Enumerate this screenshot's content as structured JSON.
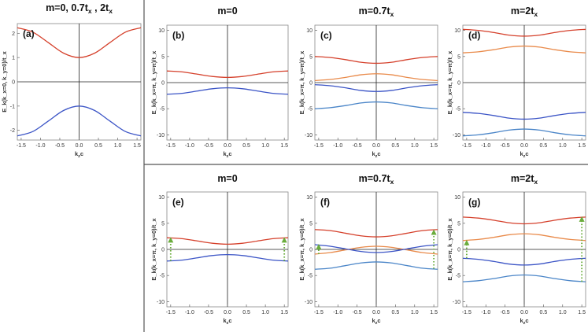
{
  "colors": {
    "red": "#d5402b",
    "orange": "#e98a4a",
    "blue": "#3b54c6",
    "lightblue": "#4a85c8",
    "arrow": "#6aac3c"
  },
  "chart_data": [
    {
      "id": "a",
      "type": "line",
      "panel_label": "(a)",
      "title": "m=0, 0.7t",
      "title_sub": "x",
      "title_tail": " , 2t",
      "title_tail_sub": "x",
      "xlabel": "k",
      "xlabel_sub": "z",
      "xlabel_tail": "c",
      "ylabel": "E_k(k_x=0, k_y=0)/t_x",
      "xlim": [
        -1.6,
        1.6
      ],
      "ylim": [
        -2.4,
        2.4
      ],
      "xticks": [
        -1.5,
        -1.0,
        -0.5,
        0.0,
        0.5,
        1.0,
        1.5
      ],
      "xtick_labels": [
        "-1.5",
        "-1.0",
        "-0.5",
        "0.0",
        "0.5",
        "1.0",
        "1.5"
      ],
      "yticks": [
        -2,
        -1,
        0,
        1,
        2
      ],
      "ytick_labels": [
        "-2",
        "-1",
        "0",
        "1",
        "2"
      ],
      "series": [
        {
          "color": "red",
          "x": [
            -1.6,
            -1.2,
            -0.8,
            -0.4,
            0.0,
            0.4,
            0.8,
            1.2,
            1.6
          ],
          "y": [
            2.23,
            2.05,
            1.62,
            1.18,
            1.0,
            1.18,
            1.62,
            2.05,
            2.23
          ]
        },
        {
          "color": "blue",
          "x": [
            -1.6,
            -1.2,
            -0.8,
            -0.4,
            0.0,
            0.4,
            0.8,
            1.2,
            1.6
          ],
          "y": [
            -2.23,
            -2.05,
            -1.62,
            -1.18,
            -1.0,
            -1.18,
            -1.62,
            -2.05,
            -2.23
          ]
        }
      ]
    },
    {
      "id": "b",
      "type": "line",
      "panel_label": "(b)",
      "title": "m=0",
      "title_sub": "",
      "title_tail": "",
      "title_tail_sub": "",
      "xlabel": "k",
      "xlabel_sub": "z",
      "xlabel_tail": "c",
      "ylabel": "E_k(k_x=π, k_y=π)/t_x",
      "xlim": [
        -1.6,
        1.6
      ],
      "ylim": [
        -11,
        11
      ],
      "xticks": [
        -1.5,
        -1.0,
        -0.5,
        0.0,
        0.5,
        1.0,
        1.5
      ],
      "xtick_labels": [
        "-1.5",
        "-1.0",
        "-0.5",
        "0.0",
        "0.5",
        "1.0",
        "1.5"
      ],
      "yticks": [
        -10,
        -5,
        0,
        5,
        10
      ],
      "ytick_labels": [
        "-10",
        "-5",
        "0",
        "5",
        "10"
      ],
      "series": [
        {
          "color": "red",
          "x": [
            -1.6,
            -1.2,
            -0.8,
            -0.4,
            0.0,
            0.4,
            0.8,
            1.2,
            1.6
          ],
          "y": [
            2.23,
            2.05,
            1.62,
            1.18,
            1.0,
            1.18,
            1.62,
            2.05,
            2.23
          ]
        },
        {
          "color": "blue",
          "x": [
            -1.6,
            -1.2,
            -0.8,
            -0.4,
            0.0,
            0.4,
            0.8,
            1.2,
            1.6
          ],
          "y": [
            -2.23,
            -2.05,
            -1.62,
            -1.18,
            -1.0,
            -1.18,
            -1.62,
            -2.05,
            -2.23
          ]
        }
      ]
    },
    {
      "id": "c",
      "type": "line",
      "panel_label": "(c)",
      "title": "m=0.7t",
      "title_sub": "x",
      "title_tail": "",
      "title_tail_sub": "",
      "xlabel": "k",
      "xlabel_sub": "z",
      "xlabel_tail": "c",
      "ylabel": "E_k(k_x=π, k_y=π)/t_x",
      "xlim": [
        -1.6,
        1.6
      ],
      "ylim": [
        -11,
        11
      ],
      "xticks": [
        -1.5,
        -1.0,
        -0.5,
        0.0,
        0.5,
        1.0,
        1.5
      ],
      "xtick_labels": [
        "-1.5",
        "-1.0",
        "-0.5",
        "0.0",
        "0.5",
        "1.0",
        "1.5"
      ],
      "yticks": [
        -10,
        -5,
        0,
        5,
        10
      ],
      "ytick_labels": [
        "-10",
        "-5",
        "0",
        "5",
        "10"
      ],
      "series": [
        {
          "color": "red",
          "x": [
            -1.6,
            -1.2,
            -0.8,
            -0.4,
            0.0,
            0.4,
            0.8,
            1.2,
            1.6
          ],
          "y": [
            5.0,
            4.8,
            4.4,
            3.9,
            3.7,
            3.9,
            4.4,
            4.8,
            5.0
          ]
        },
        {
          "color": "orange",
          "x": [
            -1.6,
            -1.2,
            -0.8,
            -0.4,
            0.0,
            0.4,
            0.8,
            1.2,
            1.6
          ],
          "y": [
            0.4,
            0.6,
            1.0,
            1.5,
            1.7,
            1.5,
            1.0,
            0.6,
            0.4
          ]
        },
        {
          "color": "blue",
          "x": [
            -1.6,
            -1.2,
            -0.8,
            -0.4,
            0.0,
            0.4,
            0.8,
            1.2,
            1.6
          ],
          "y": [
            -0.4,
            -0.6,
            -1.0,
            -1.5,
            -1.7,
            -1.5,
            -1.0,
            -0.6,
            -0.4
          ]
        },
        {
          "color": "lightblue",
          "x": [
            -1.6,
            -1.2,
            -0.8,
            -0.4,
            0.0,
            0.4,
            0.8,
            1.2,
            1.6
          ],
          "y": [
            -5.0,
            -4.8,
            -4.4,
            -3.9,
            -3.7,
            -3.9,
            -4.4,
            -4.8,
            -5.0
          ]
        }
      ]
    },
    {
      "id": "d",
      "type": "line",
      "panel_label": "(d)",
      "title": "m=2t",
      "title_sub": "x",
      "title_tail": "",
      "title_tail_sub": "",
      "xlabel": "k",
      "xlabel_sub": "z",
      "xlabel_tail": "c",
      "ylabel": "E_k(k_x=π, k_y=π)/t_x",
      "xlim": [
        -1.6,
        1.6
      ],
      "ylim": [
        -11,
        11
      ],
      "xticks": [
        -1.5,
        -1.0,
        -0.5,
        0.0,
        0.5,
        1.0,
        1.5
      ],
      "xtick_labels": [
        "-1.5",
        "-1.0",
        "-0.5",
        "0.0",
        "0.5",
        "1.0",
        "1.5"
      ],
      "yticks": [
        -10,
        -5,
        0,
        5,
        10
      ],
      "ytick_labels": [
        "-10",
        "-5",
        "0",
        "5",
        "10"
      ],
      "series": [
        {
          "color": "red",
          "x": [
            -1.6,
            -1.2,
            -0.8,
            -0.4,
            0.0,
            0.4,
            0.8,
            1.2,
            1.6
          ],
          "y": [
            10.2,
            10.0,
            9.6,
            9.1,
            8.9,
            9.1,
            9.6,
            10.0,
            10.2
          ]
        },
        {
          "color": "orange",
          "x": [
            -1.6,
            -1.2,
            -0.8,
            -0.4,
            0.0,
            0.4,
            0.8,
            1.2,
            1.6
          ],
          "y": [
            5.7,
            5.9,
            6.3,
            6.8,
            7.0,
            6.8,
            6.3,
            5.9,
            5.7
          ]
        },
        {
          "color": "blue",
          "x": [
            -1.6,
            -1.2,
            -0.8,
            -0.4,
            0.0,
            0.4,
            0.8,
            1.2,
            1.6
          ],
          "y": [
            -5.7,
            -5.9,
            -6.3,
            -6.8,
            -7.0,
            -6.8,
            -6.3,
            -5.9,
            -5.7
          ]
        },
        {
          "color": "lightblue",
          "x": [
            -1.6,
            -1.2,
            -0.8,
            -0.4,
            0.0,
            0.4,
            0.8,
            1.2,
            1.6
          ],
          "y": [
            -10.2,
            -10.0,
            -9.6,
            -9.1,
            -8.9,
            -9.1,
            -9.6,
            -10.0,
            -10.2
          ]
        }
      ]
    },
    {
      "id": "e",
      "type": "line",
      "panel_label": "(e)",
      "title": "m=0",
      "title_sub": "",
      "title_tail": "",
      "title_tail_sub": "",
      "xlabel": "k",
      "xlabel_sub": "z",
      "xlabel_tail": "c",
      "ylabel": "E_k(k_x=π, k_y=0)/t_x",
      "xlim": [
        -1.6,
        1.6
      ],
      "ylim": [
        -11,
        11
      ],
      "xticks": [
        -1.5,
        -1.0,
        -0.5,
        0.0,
        0.5,
        1.0,
        1.5
      ],
      "xtick_labels": [
        "-1.5",
        "-1.0",
        "-0.5",
        "0.0",
        "0.5",
        "1.0",
        "1.5"
      ],
      "yticks": [
        -10,
        -5,
        0,
        5,
        10
      ],
      "ytick_labels": [
        "-10",
        "-5",
        "0",
        "5",
        "10"
      ],
      "series": [
        {
          "color": "red",
          "x": [
            -1.6,
            -1.2,
            -0.8,
            -0.4,
            0.0,
            0.4,
            0.8,
            1.2,
            1.6
          ],
          "y": [
            2.23,
            2.05,
            1.62,
            1.18,
            1.0,
            1.18,
            1.62,
            2.05,
            2.23
          ]
        },
        {
          "color": "blue",
          "x": [
            -1.6,
            -1.2,
            -0.8,
            -0.4,
            0.0,
            0.4,
            0.8,
            1.2,
            1.6
          ],
          "y": [
            -2.23,
            -2.05,
            -1.62,
            -1.18,
            -1.0,
            -1.18,
            -1.62,
            -2.05,
            -2.23
          ]
        }
      ],
      "arrows": [
        {
          "x": -1.5,
          "y0": -2.2,
          "y1": 2.2
        },
        {
          "x": 1.5,
          "y0": -2.2,
          "y1": 2.2
        }
      ]
    },
    {
      "id": "f",
      "type": "line",
      "panel_label": "(f)",
      "title": "m=0.7t",
      "title_sub": "x",
      "title_tail": "",
      "title_tail_sub": "",
      "xlabel": "k",
      "xlabel_sub": "z",
      "xlabel_tail": "c",
      "ylabel": "E_k(k_x=π, k_y=0)/t_x",
      "xlim": [
        -1.6,
        1.6
      ],
      "ylim": [
        -11,
        11
      ],
      "xticks": [
        -1.5,
        -1.0,
        -0.5,
        0.0,
        0.5,
        1.0,
        1.5
      ],
      "xtick_labels": [
        "-1.5",
        "-1.0",
        "-0.5",
        "0.0",
        "0.5",
        "1.0",
        "1.5"
      ],
      "yticks": [
        -10,
        -5,
        0,
        5,
        10
      ],
      "ytick_labels": [
        "-10",
        "-5",
        "0",
        "5",
        "10"
      ],
      "series": [
        {
          "color": "red",
          "x": [
            -1.6,
            -1.2,
            -0.8,
            -0.4,
            0.0,
            0.4,
            0.8,
            1.2,
            1.6
          ],
          "y": [
            3.8,
            3.6,
            3.1,
            2.6,
            2.4,
            2.6,
            3.1,
            3.6,
            3.8
          ]
        },
        {
          "color": "orange",
          "x": [
            -1.6,
            -1.2,
            -0.8,
            -0.4,
            0.0,
            0.4,
            0.8,
            1.2,
            1.6
          ],
          "y": [
            -0.9,
            -0.6,
            -0.1,
            0.4,
            0.6,
            0.4,
            -0.1,
            -0.6,
            -0.9
          ]
        },
        {
          "color": "blue",
          "x": [
            -1.6,
            -1.2,
            -0.8,
            -0.4,
            0.0,
            0.4,
            0.8,
            1.2,
            1.6
          ],
          "y": [
            0.9,
            0.6,
            0.1,
            -0.4,
            -0.6,
            -0.4,
            0.1,
            0.6,
            0.9
          ]
        },
        {
          "color": "lightblue",
          "x": [
            -1.6,
            -1.2,
            -0.8,
            -0.4,
            0.0,
            0.4,
            0.8,
            1.2,
            1.6
          ],
          "y": [
            -3.8,
            -3.6,
            -3.1,
            -2.6,
            -2.4,
            -2.6,
            -3.1,
            -3.6,
            -3.8
          ]
        }
      ],
      "arrows": [
        {
          "x": -1.5,
          "y0": -0.9,
          "y1": 0.9
        },
        {
          "x": 1.5,
          "y0": -3.7,
          "y1": 3.7
        }
      ]
    },
    {
      "id": "g",
      "type": "line",
      "panel_label": "(g)",
      "title": "m=2t",
      "title_sub": "x",
      "title_tail": "",
      "title_tail_sub": "",
      "xlabel": "k",
      "xlabel_sub": "z",
      "xlabel_tail": "c",
      "ylabel": "E_k(k_x=π, k_y=0)/t_x",
      "xlim": [
        -1.6,
        1.6
      ],
      "ylim": [
        -11,
        11
      ],
      "xticks": [
        -1.5,
        -1.0,
        -0.5,
        0.0,
        0.5,
        1.0,
        1.5
      ],
      "xtick_labels": [
        "-1.5",
        "-1.0",
        "-0.5",
        "0.0",
        "0.5",
        "1.0",
        "1.5"
      ],
      "yticks": [
        -10,
        -5,
        0,
        5,
        10
      ],
      "ytick_labels": [
        "-10",
        "-5",
        "0",
        "5",
        "10"
      ],
      "series": [
        {
          "color": "red",
          "x": [
            -1.6,
            -1.2,
            -0.8,
            -0.4,
            0.0,
            0.4,
            0.8,
            1.2,
            1.6
          ],
          "y": [
            6.2,
            6.0,
            5.6,
            5.1,
            4.9,
            5.1,
            5.6,
            6.0,
            6.2
          ]
        },
        {
          "color": "orange",
          "x": [
            -1.6,
            -1.2,
            -0.8,
            -0.4,
            0.0,
            0.4,
            0.8,
            1.2,
            1.6
          ],
          "y": [
            1.7,
            1.9,
            2.3,
            2.8,
            3.0,
            2.8,
            2.3,
            1.9,
            1.7
          ]
        },
        {
          "color": "blue",
          "x": [
            -1.6,
            -1.2,
            -0.8,
            -0.4,
            0.0,
            0.4,
            0.8,
            1.2,
            1.6
          ],
          "y": [
            -1.7,
            -1.9,
            -2.3,
            -2.8,
            -3.0,
            -2.8,
            -2.3,
            -1.9,
            -1.7
          ]
        },
        {
          "color": "lightblue",
          "x": [
            -1.6,
            -1.2,
            -0.8,
            -0.4,
            0.0,
            0.4,
            0.8,
            1.2,
            1.6
          ],
          "y": [
            -6.2,
            -6.0,
            -5.6,
            -5.1,
            -4.9,
            -5.1,
            -5.6,
            -6.0,
            -6.2
          ]
        }
      ],
      "arrows": [
        {
          "x": -1.5,
          "y0": -1.7,
          "y1": 1.7
        },
        {
          "x": 1.5,
          "y0": -6.2,
          "y1": 6.2
        }
      ]
    }
  ]
}
